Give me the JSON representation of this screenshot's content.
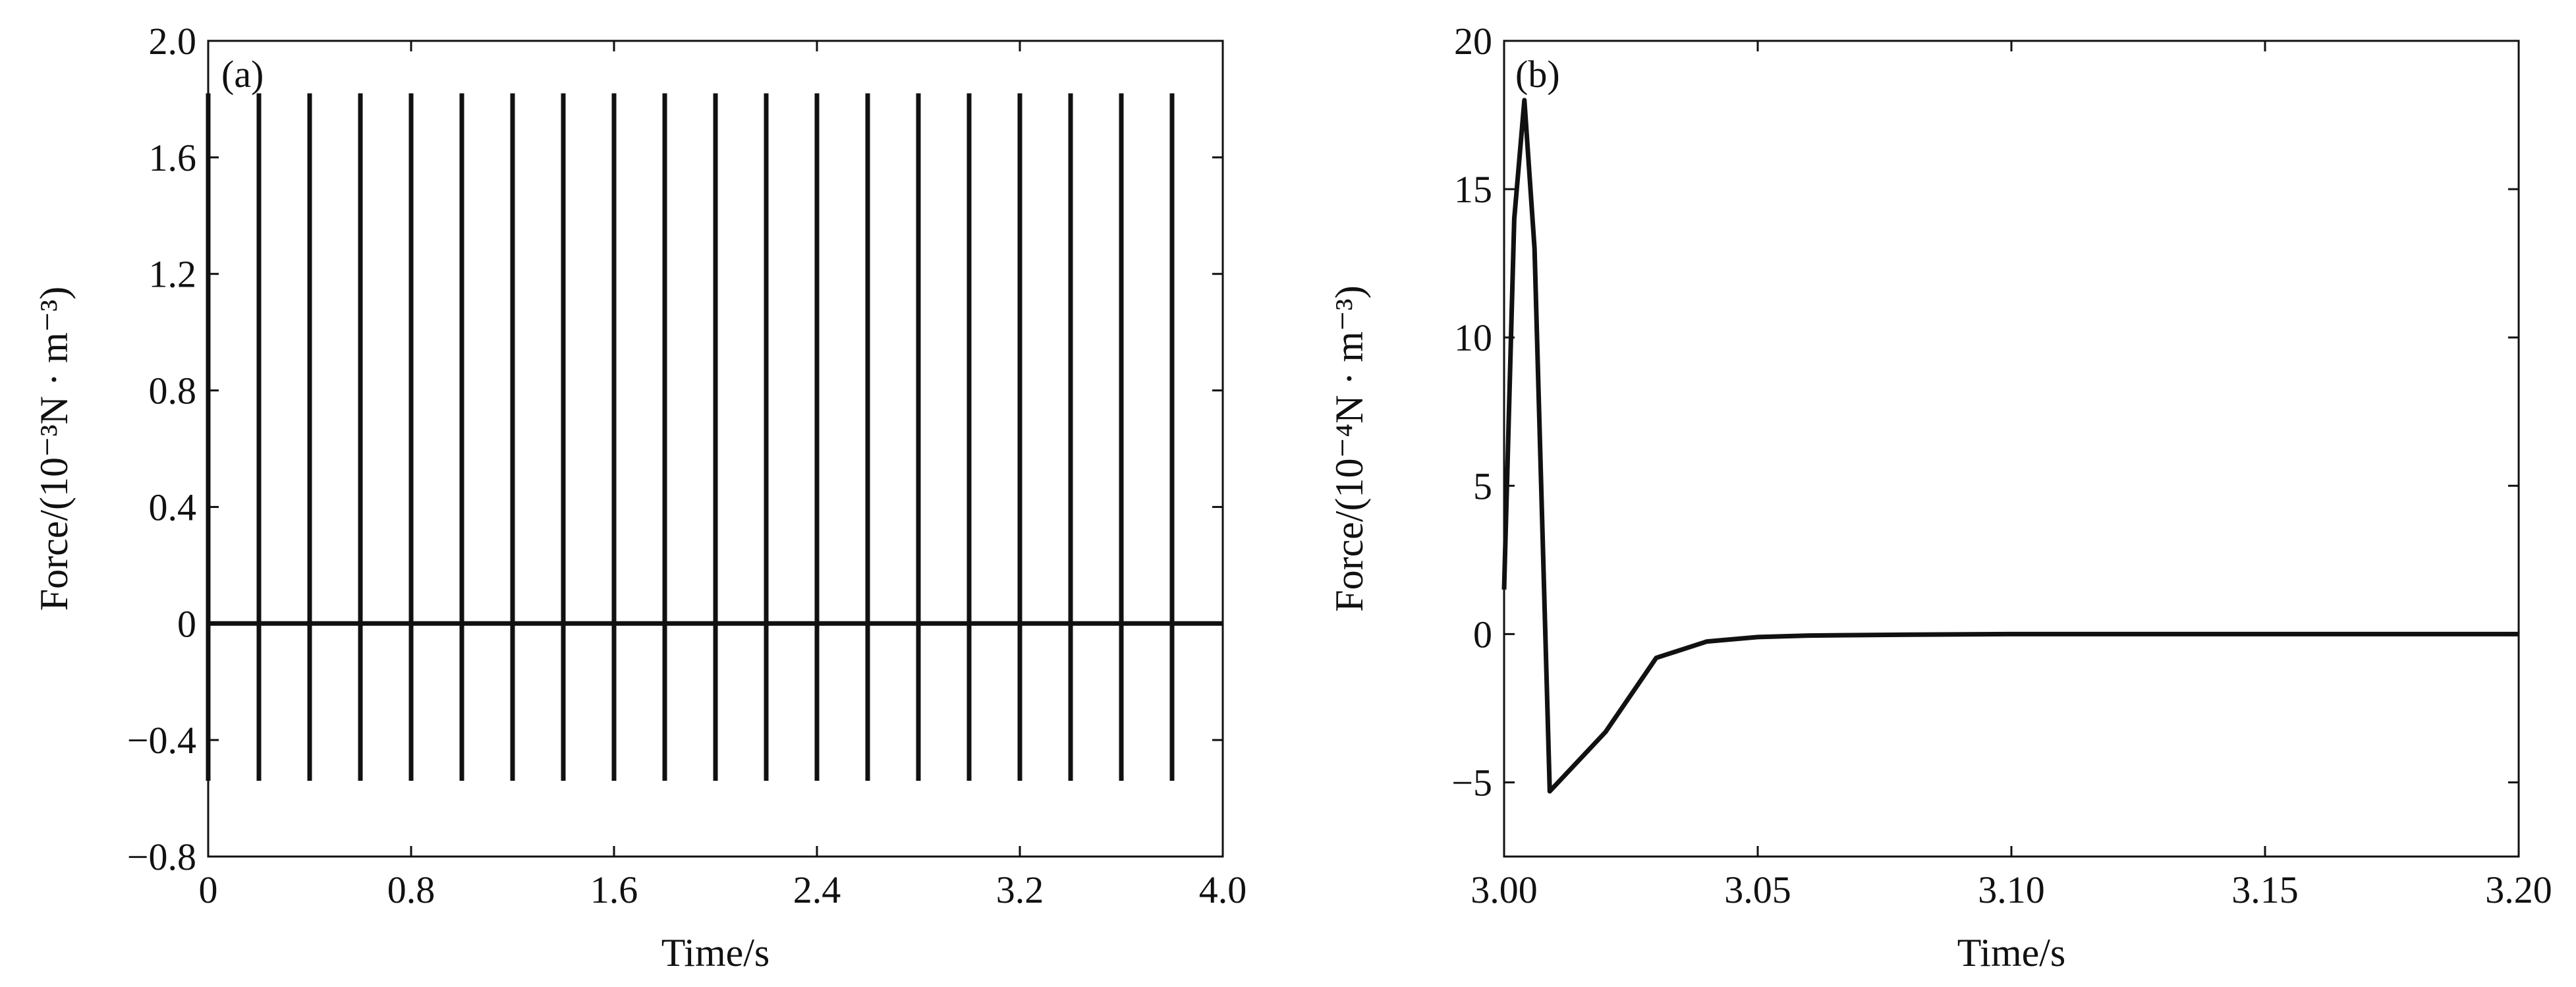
{
  "chart_data": [
    {
      "type": "line",
      "panel_label": "(a)",
      "xlabel": "Time/s",
      "ylabel": "Force/(10⁻³N · m⁻³)",
      "xlim": [
        0,
        4.0
      ],
      "ylim": [
        -0.8,
        2.0
      ],
      "x_ticks": [
        0,
        0.8,
        1.6,
        2.4,
        3.2,
        4.0
      ],
      "x_tick_labels": [
        "0",
        "0.8",
        "1.6",
        "2.4",
        "3.2",
        "4.0"
      ],
      "y_ticks": [
        -0.8,
        -0.4,
        0,
        0.4,
        0.8,
        1.2,
        1.6,
        2.0
      ],
      "y_tick_labels": [
        "−0.8",
        "−0.4",
        "0",
        "0.4",
        "0.8",
        "1.2",
        "1.6",
        "2.0"
      ],
      "grid": false,
      "baseline": 0,
      "pulse_range": [
        -0.54,
        1.82
      ],
      "pulse_times": [
        0,
        0.2,
        0.4,
        0.6,
        0.8,
        1.0,
        1.2,
        1.4,
        1.6,
        1.8,
        2.0,
        2.2,
        2.4,
        2.6,
        2.8,
        3.0,
        3.2,
        3.4,
        3.6,
        3.8
      ]
    },
    {
      "type": "line",
      "panel_label": "(b)",
      "xlabel": "Time/s",
      "ylabel": "Force/(10⁻⁴N · m⁻³)",
      "xlim": [
        3.0,
        3.2
      ],
      "ylim": [
        -7.5,
        20
      ],
      "x_ticks": [
        3.0,
        3.05,
        3.1,
        3.15,
        3.2
      ],
      "x_tick_labels": [
        "3.00",
        "3.05",
        "3.10",
        "3.15",
        "3.20"
      ],
      "y_ticks": [
        -5,
        0,
        5,
        10,
        15,
        20
      ],
      "y_tick_labels": [
        "−5",
        "0",
        "5",
        "10",
        "15",
        "20"
      ],
      "grid": false,
      "x": [
        3.0,
        3.002,
        3.004,
        3.006,
        3.009,
        3.02,
        3.03,
        3.04,
        3.05,
        3.06,
        3.08,
        3.1,
        3.15,
        3.2
      ],
      "y": [
        1.5,
        14,
        18,
        13,
        -5.3,
        -3.3,
        -0.8,
        -0.25,
        -0.1,
        -0.05,
        -0.02,
        0,
        0,
        0
      ]
    }
  ]
}
